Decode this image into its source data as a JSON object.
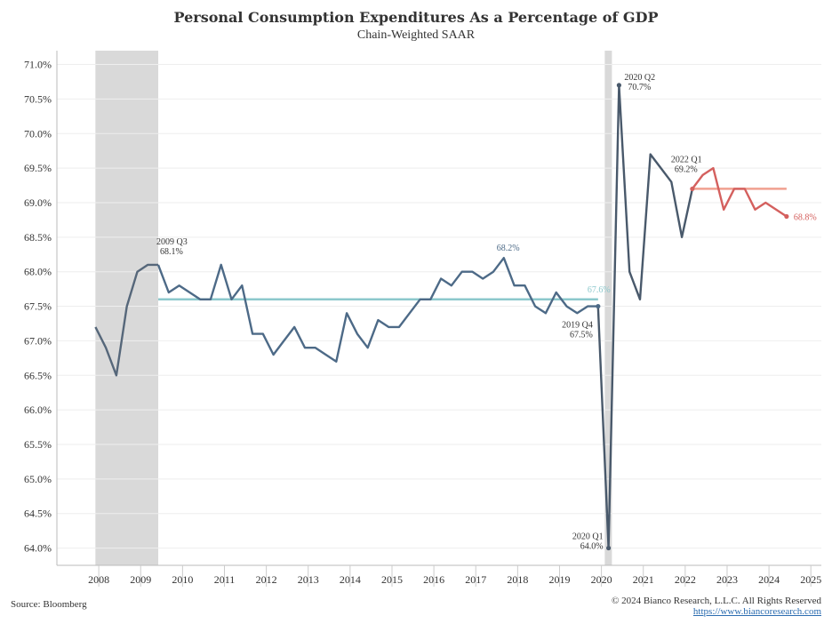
{
  "title": "Personal Consumption Expenditures As a Percentage of GDP",
  "subtitle": "Chain-Weighted SAAR",
  "source": "Source: Bloomberg",
  "copyright": "© 2024 Bianco Research, L.L.C. All Rights Reserved",
  "website": "https://www.biancoresearch.com",
  "colors": {
    "main_line": "#49596b",
    "pre_line": "#56677a",
    "mid_line": "#4d6a87",
    "recent_line": "#d4605e",
    "avg_line_mid": "#8cc8cc",
    "avg_line_recent": "#f0a090",
    "recession": "#d9d9d9",
    "grid": "#eeeeee"
  },
  "chart_data": {
    "type": "line",
    "x_unit": "year (quarterly)",
    "xlim": [
      2007.0,
      2025.25
    ],
    "ylim": [
      63.75,
      71.2
    ],
    "y_ticks": [
      "71.0%",
      "70.5%",
      "70.0%",
      "69.5%",
      "69.0%",
      "68.5%",
      "68.0%",
      "67.5%",
      "67.0%",
      "66.5%",
      "66.0%",
      "65.5%",
      "65.0%",
      "64.5%",
      "64.0%"
    ],
    "y_tick_values": [
      71.0,
      70.5,
      70.0,
      69.5,
      69.0,
      68.5,
      68.0,
      67.5,
      67.0,
      66.5,
      66.0,
      65.5,
      65.0,
      64.5,
      64.0
    ],
    "x_ticks": [
      "2008",
      "2009",
      "2010",
      "2011",
      "2012",
      "2013",
      "2014",
      "2015",
      "2016",
      "2017",
      "2018",
      "2019",
      "2020",
      "2021",
      "2022",
      "2023",
      "2024",
      "2025"
    ],
    "recessions": [
      [
        2007.92,
        2009.42
      ],
      [
        2020.08,
        2020.25
      ]
    ],
    "series": [
      {
        "segment": "pre",
        "x": [
          2007.92,
          2008.17,
          2008.42,
          2008.67,
          2008.92,
          2009.17,
          2009.42
        ],
        "y": [
          67.2,
          66.9,
          66.5,
          67.5,
          68.0,
          68.1,
          68.1
        ]
      },
      {
        "segment": "mid",
        "x": [
          2009.42,
          2009.67,
          2009.92,
          2010.17,
          2010.42,
          2010.67,
          2010.92,
          2011.17,
          2011.42,
          2011.67,
          2011.92,
          2012.17,
          2012.42,
          2012.67,
          2012.92,
          2013.17,
          2013.42,
          2013.67,
          2013.92,
          2014.17,
          2014.42,
          2014.67,
          2014.92,
          2015.17,
          2015.42,
          2015.67,
          2015.92,
          2016.17,
          2016.42,
          2016.67,
          2016.92,
          2017.17,
          2017.42,
          2017.67,
          2017.92,
          2018.17,
          2018.42,
          2018.67,
          2018.92,
          2019.17,
          2019.42,
          2019.67,
          2019.92
        ],
        "y": [
          68.1,
          67.7,
          67.8,
          67.7,
          67.6,
          67.6,
          68.1,
          67.6,
          67.8,
          67.1,
          67.1,
          66.8,
          67.0,
          67.2,
          66.9,
          66.9,
          66.8,
          66.7,
          67.4,
          67.1,
          66.9,
          67.3,
          67.2,
          67.2,
          67.4,
          67.6,
          67.6,
          67.9,
          67.8,
          68.0,
          68.0,
          67.9,
          68.0,
          68.2,
          67.8,
          67.8,
          67.5,
          67.4,
          67.7,
          67.5,
          67.4,
          67.5,
          67.5
        ]
      },
      {
        "segment": "main",
        "x": [
          2019.92,
          2020.17,
          2020.42,
          2020.67,
          2020.92,
          2021.17,
          2021.42,
          2021.67,
          2021.92,
          2022.17
        ],
        "y": [
          67.5,
          64.0,
          70.7,
          68.0,
          67.6,
          69.7,
          69.5,
          69.3,
          68.5,
          69.2
        ]
      },
      {
        "segment": "recent",
        "x": [
          2022.17,
          2022.42,
          2022.67,
          2022.92,
          2023.17,
          2023.42,
          2023.67,
          2023.92,
          2024.17,
          2024.42
        ],
        "y": [
          69.2,
          69.4,
          69.5,
          68.9,
          69.2,
          69.2,
          68.9,
          69.0,
          68.9,
          68.8
        ]
      }
    ],
    "averages": [
      {
        "label": "67.6%",
        "x": [
          2009.42,
          2019.92
        ],
        "y": 67.6
      },
      {
        "label": "",
        "x": [
          2022.17,
          2024.42
        ],
        "y": 69.2
      }
    ],
    "annotations": [
      {
        "label": "2009 Q3",
        "value": "68.1%",
        "x": 2009.42,
        "y": 68.1
      },
      {
        "label": "",
        "value": "68.2%",
        "x": 2017.67,
        "y": 68.2
      },
      {
        "label": "2019 Q4",
        "value": "67.5%",
        "x": 2019.92,
        "y": 67.5
      },
      {
        "label": "2020 Q1",
        "value": "64.0%",
        "x": 2020.17,
        "y": 64.0
      },
      {
        "label": "2020 Q2",
        "value": "70.7%",
        "x": 2020.42,
        "y": 70.7
      },
      {
        "label": "2022 Q1",
        "value": "69.2%",
        "x": 2022.17,
        "y": 69.2
      },
      {
        "label": "",
        "value": "68.8%",
        "x": 2024.42,
        "y": 68.8
      }
    ]
  }
}
